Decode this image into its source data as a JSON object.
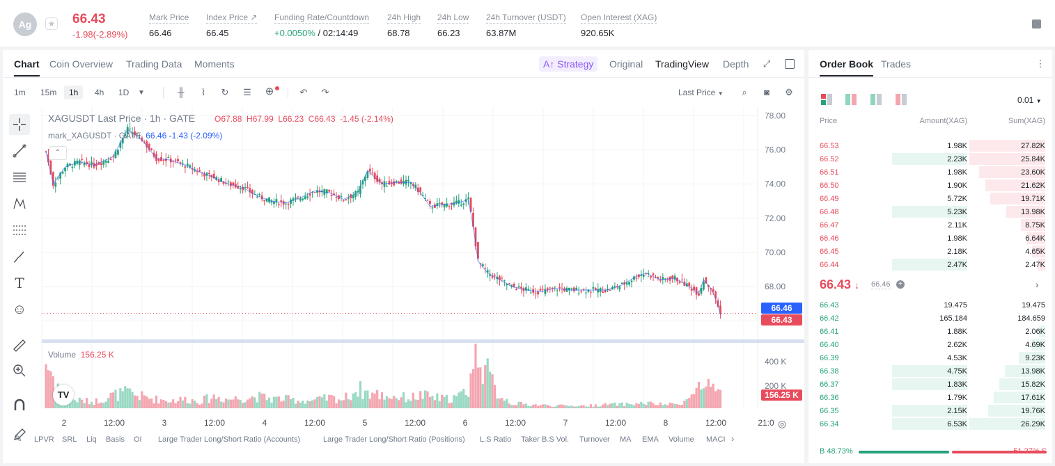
{
  "header": {
    "avatar_text": "Ag",
    "last_price": "66.43",
    "change": "-1.98(-2.89%)",
    "stats": [
      {
        "label": "Mark Price",
        "value": "66.46"
      },
      {
        "label": "Index Price ↗",
        "value": "66.45"
      },
      {
        "label": "Funding Rate/Countdown",
        "value": "+0.0050%",
        "value2": " / 02:14:49"
      },
      {
        "label": "24h High",
        "value": "68.78"
      },
      {
        "label": "24h Low",
        "value": "66.23"
      },
      {
        "label": "24h Turnover (USDT)",
        "value": "63.87M"
      },
      {
        "label": "Open Interest (XAG)",
        "value": "920.65K"
      }
    ]
  },
  "chart_tabs": {
    "tabs": [
      "Chart",
      "Coin Overview",
      "Trading Data",
      "Moments"
    ],
    "strategy": "Strategy",
    "views": [
      "Original",
      "TradingView",
      "Depth"
    ]
  },
  "toolbar": {
    "timeframes": [
      "1m",
      "15m",
      "1h",
      "4h",
      "1D"
    ],
    "active_tf": "1h",
    "price_type": "Last Price"
  },
  "legend": {
    "symbol": "XAGUSDT Last Price · 1h · GATE",
    "ohlc": [
      "O67.88",
      "H67.99",
      "L66.23",
      "C66.43",
      "-1.45 (-2.14%)"
    ],
    "mark_label": "mark_XAGUSDT · GATE",
    "mark_values": "66.46  -1.43 (-2.09%)",
    "volume_label": "Volume",
    "volume_value": "156.25 K"
  },
  "price_tags": {
    "mark": "66.46",
    "last": "66.43",
    "volume": "156.25 K"
  },
  "bottom_indicators": [
    "LPVR",
    "SRL",
    "Liq",
    "Basis",
    "OI",
    "Large Trader Long/Short Ratio (Accounts)",
    "Large Trader Long/Short Ratio (Positions)",
    "L.S Ratio",
    "Taker B.S Vol.",
    "Turnover",
    "MA",
    "EMA",
    "Volume",
    "MACI"
  ],
  "chart_data": {
    "type": "candlestick",
    "y_range": [
      65.4,
      78.5
    ],
    "y_ticks": [
      "78.00",
      "76.00",
      "74.00",
      "72.00",
      "70.00",
      "68.00",
      "66.00"
    ],
    "volume_ticks": [
      "400 K",
      "200 K"
    ],
    "x_ticks": [
      "2",
      "12:00",
      "3",
      "12:00",
      "4",
      "12:00",
      "5",
      "12:00",
      "6",
      "12:00",
      "7",
      "12:00",
      "8",
      "12:00",
      "21:0"
    ],
    "close_path": [
      [
        0,
        75.9
      ],
      [
        3,
        74.0
      ],
      [
        8,
        75.0
      ],
      [
        14,
        75.3
      ],
      [
        20,
        75.1
      ],
      [
        28,
        75.6
      ],
      [
        34,
        77.2
      ],
      [
        40,
        76.6
      ],
      [
        46,
        75.5
      ],
      [
        52,
        75.4
      ],
      [
        58,
        75.1
      ],
      [
        64,
        74.7
      ],
      [
        70,
        74.4
      ],
      [
        76,
        74.0
      ],
      [
        82,
        73.8
      ],
      [
        88,
        73.3
      ],
      [
        94,
        73.0
      ],
      [
        100,
        72.9
      ],
      [
        106,
        73.2
      ],
      [
        112,
        73.6
      ],
      [
        118,
        73.5
      ],
      [
        124,
        73.1
      ],
      [
        130,
        73.5
      ],
      [
        134,
        74.8
      ],
      [
        140,
        74.0
      ],
      [
        146,
        74.1
      ],
      [
        152,
        74.1
      ],
      [
        156,
        73.5
      ],
      [
        160,
        72.7
      ],
      [
        166,
        72.8
      ],
      [
        172,
        72.9
      ],
      [
        176,
        73.1
      ],
      [
        178,
        71.5
      ],
      [
        180,
        69.5
      ],
      [
        184,
        68.8
      ],
      [
        188,
        68.5
      ],
      [
        194,
        68.0
      ],
      [
        200,
        67.8
      ],
      [
        206,
        67.7
      ],
      [
        212,
        67.9
      ],
      [
        218,
        67.8
      ],
      [
        226,
        67.8
      ],
      [
        234,
        67.8
      ],
      [
        240,
        68.1
      ],
      [
        246,
        68.6
      ],
      [
        250,
        68.8
      ],
      [
        256,
        68.4
      ],
      [
        262,
        68.5
      ],
      [
        268,
        68.0
      ],
      [
        272,
        67.6
      ],
      [
        274,
        68.4
      ],
      [
        277,
        67.9
      ],
      [
        279,
        67.3
      ],
      [
        281,
        66.4
      ]
    ],
    "volume_path": [
      [
        0,
        360
      ],
      [
        3,
        250
      ],
      [
        8,
        80
      ],
      [
        14,
        60
      ],
      [
        20,
        50
      ],
      [
        28,
        100
      ],
      [
        34,
        120
      ],
      [
        40,
        90
      ],
      [
        46,
        70
      ],
      [
        52,
        60
      ],
      [
        58,
        70
      ],
      [
        64,
        55
      ],
      [
        70,
        90
      ],
      [
        76,
        70
      ],
      [
        82,
        80
      ],
      [
        88,
        90
      ],
      [
        94,
        75
      ],
      [
        100,
        70
      ],
      [
        106,
        60
      ],
      [
        112,
        60
      ],
      [
        118,
        80
      ],
      [
        124,
        70
      ],
      [
        130,
        150
      ],
      [
        134,
        120
      ],
      [
        140,
        100
      ],
      [
        146,
        90
      ],
      [
        152,
        80
      ],
      [
        156,
        100
      ],
      [
        160,
        90
      ],
      [
        166,
        70
      ],
      [
        172,
        90
      ],
      [
        176,
        150
      ],
      [
        178,
        350
      ],
      [
        180,
        480
      ],
      [
        184,
        260
      ],
      [
        188,
        120
      ],
      [
        194,
        40
      ],
      [
        200,
        30
      ],
      [
        206,
        25
      ],
      [
        212,
        20
      ],
      [
        218,
        20
      ],
      [
        226,
        20
      ],
      [
        234,
        30
      ],
      [
        240,
        30
      ],
      [
        246,
        35
      ],
      [
        250,
        40
      ],
      [
        256,
        30
      ],
      [
        262,
        30
      ],
      [
        268,
        70
      ],
      [
        272,
        180
      ],
      [
        274,
        120
      ],
      [
        277,
        170
      ],
      [
        279,
        90
      ],
      [
        281,
        156
      ]
    ]
  },
  "orderbook": {
    "tabs": [
      "Order Book",
      "Trades"
    ],
    "precision": "0.01",
    "headers": [
      "Price",
      "Amount(XAG)",
      "Sum(XAG)"
    ],
    "asks": [
      {
        "price": "66.53",
        "amount": "1.98K",
        "sum": "27.82K",
        "amt_frac": 0,
        "sum_frac": 0.99
      },
      {
        "price": "66.52",
        "amount": "2.23K",
        "sum": "25.84K",
        "amt_frac": 0.6,
        "sum_frac": 0.99
      },
      {
        "price": "66.51",
        "amount": "1.98K",
        "sum": "23.60K",
        "amt_frac": 0,
        "sum_frac": 0.86
      },
      {
        "price": "66.50",
        "amount": "1.90K",
        "sum": "21.62K",
        "amt_frac": 0,
        "sum_frac": 0.78
      },
      {
        "price": "66.49",
        "amount": "5.72K",
        "sum": "19.71K",
        "amt_frac": 0,
        "sum_frac": 0.72
      },
      {
        "price": "66.48",
        "amount": "5.23K",
        "sum": "13.98K",
        "amt_frac": 0.6,
        "sum_frac": 0.51
      },
      {
        "price": "66.47",
        "amount": "2.11K",
        "sum": "8.75K",
        "amt_frac": 0,
        "sum_frac": 0.32
      },
      {
        "price": "66.46",
        "amount": "1.98K",
        "sum": "6.64K",
        "amt_frac": 0,
        "sum_frac": 0.24
      },
      {
        "price": "66.45",
        "amount": "2.18K",
        "sum": "4.65K",
        "amt_frac": 0,
        "sum_frac": 0.17
      },
      {
        "price": "66.44",
        "amount": "2.47K",
        "sum": "2.47K",
        "amt_frac": 0.6,
        "sum_frac": 0.09
      }
    ],
    "mid_price": "66.43",
    "mid_mark": "66.46",
    "bids": [
      {
        "price": "66.43",
        "amount": "19.475",
        "sum": "19.475",
        "amt_frac": 0,
        "sum_frac": 0
      },
      {
        "price": "66.42",
        "amount": "165.184",
        "sum": "184.659",
        "amt_frac": 0,
        "sum_frac": 0
      },
      {
        "price": "66.41",
        "amount": "1.88K",
        "sum": "2.06K",
        "amt_frac": 0,
        "sum_frac": 0.08
      },
      {
        "price": "66.40",
        "amount": "2.62K",
        "sum": "4.69K",
        "amt_frac": 0,
        "sum_frac": 0.18
      },
      {
        "price": "66.39",
        "amount": "4.53K",
        "sum": "9.23K",
        "amt_frac": 0,
        "sum_frac": 0.35
      },
      {
        "price": "66.38",
        "amount": "4.75K",
        "sum": "13.98K",
        "amt_frac": 0.6,
        "sum_frac": 0.53
      },
      {
        "price": "66.37",
        "amount": "1.83K",
        "sum": "15.82K",
        "amt_frac": 0.6,
        "sum_frac": 0.6
      },
      {
        "price": "66.36",
        "amount": "1.79K",
        "sum": "17.61K",
        "amt_frac": 0,
        "sum_frac": 0.67
      },
      {
        "price": "66.35",
        "amount": "2.15K",
        "sum": "19.76K",
        "amt_frac": 0.6,
        "sum_frac": 0.75
      },
      {
        "price": "66.34",
        "amount": "6.53K",
        "sum": "26.29K",
        "amt_frac": 0.6,
        "sum_frac": 1.0
      }
    ],
    "buy_ratio": "B 48.73%",
    "sell_ratio": "51.27% S",
    "buy_frac": 0.4873
  },
  "colors": {
    "up": "#26a17b",
    "down": "#e84b5c",
    "accent": "#8b56f5"
  }
}
